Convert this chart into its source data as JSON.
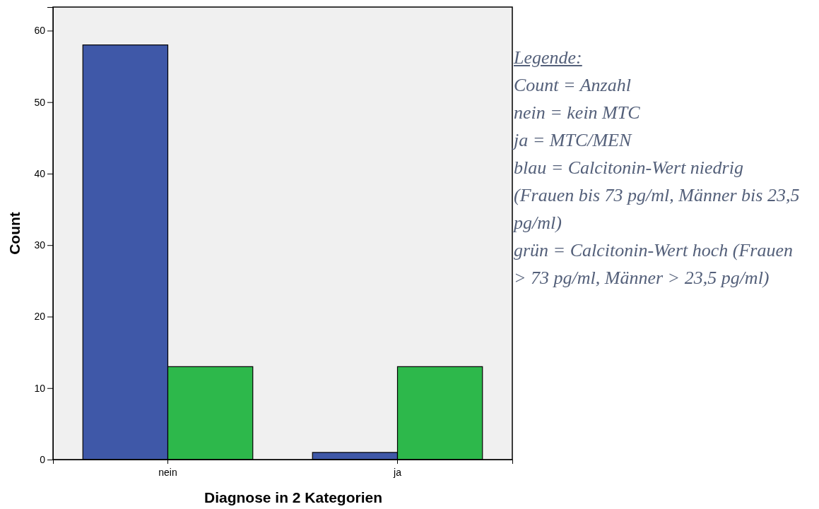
{
  "chart_data": {
    "type": "bar",
    "xlabel": "Diagnose in 2 Kategorien",
    "ylabel": "Count",
    "categories": [
      "nein",
      "ja"
    ],
    "series": [
      {
        "color": "#3f58a8",
        "values": [
          58,
          1
        ]
      },
      {
        "color": "#2db84b",
        "values": [
          13,
          13
        ]
      }
    ],
    "ylim": [
      0,
      63.3
    ],
    "yticks": [
      0,
      10,
      20,
      30,
      40,
      50,
      60
    ],
    "grid": false,
    "annotations": [
      "Legende:",
      "Count = Anzahl",
      "nein = kein MTC",
      "ja = MTC/MEN",
      "blau = Calcitonin-Wert niedrig (Frauen bis 73 pg/ml, Männer bis 23,5 pg/ml)",
      "grün = Calcitonin-Wert hoch (Frauen > 73 pg/ml, Männer > 23,5 pg/ml)"
    ]
  }
}
